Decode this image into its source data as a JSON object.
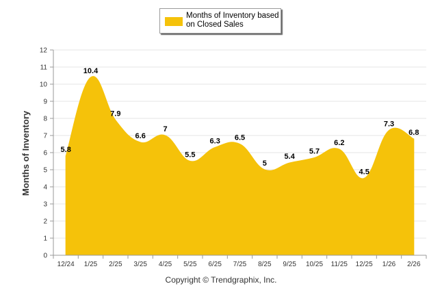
{
  "legend": {
    "label": "Months of Inventory based on Closed Sales"
  },
  "footer": {
    "copyright": "Copyright © Trendgraphix, Inc."
  },
  "colors": {
    "fill": "#f5c20a",
    "grid": "#e6e6e6",
    "axis": "#999999",
    "text": "#333333"
  },
  "chart_data": {
    "type": "area",
    "title": "",
    "xlabel": "",
    "ylabel": "Months of Inventory",
    "categories": [
      "12/24",
      "1/25",
      "2/25",
      "3/25",
      "4/25",
      "5/25",
      "6/25",
      "7/25",
      "8/25",
      "9/25",
      "10/25",
      "11/25",
      "12/25",
      "1/26",
      "2/26"
    ],
    "series": [
      {
        "name": "Months of Inventory based on Closed Sales",
        "values": [
          5.8,
          10.4,
          7.9,
          6.6,
          7,
          5.5,
          6.3,
          6.5,
          5,
          5.4,
          5.7,
          6.2,
          4.5,
          7.3,
          6.8
        ],
        "labels": [
          "5.8",
          "10.4",
          "7.9",
          "6.6",
          "7",
          "5.5",
          "6.3",
          "6.5",
          "5",
          "5.4",
          "5.7",
          "6.2",
          "4.5",
          "7.3",
          "6.8"
        ]
      }
    ],
    "ylim": [
      0,
      12
    ],
    "yticks": [
      "0",
      "1",
      "2",
      "3",
      "4",
      "5",
      "6",
      "7",
      "8",
      "9",
      "10",
      "11",
      "12"
    ],
    "grid": true,
    "legend_position": "top-center"
  }
}
